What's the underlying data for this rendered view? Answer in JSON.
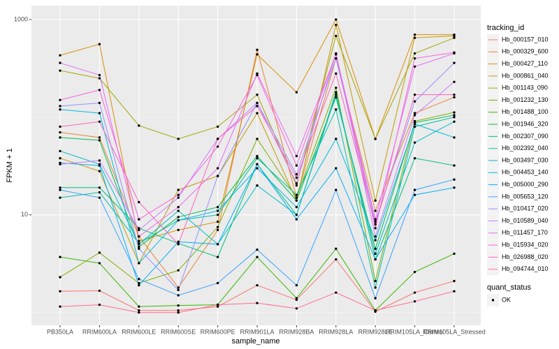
{
  "chart_data": {
    "type": "line",
    "x_label": "sample_name",
    "y_label": "FPKM + 1",
    "log_y": true,
    "grid": true,
    "legend_title": "tracking_id",
    "legend2_title": "quant_status",
    "legend2_entries": [
      "OK"
    ],
    "categories": [
      "PB350LA",
      "RRIM600LA",
      "RRIM600LE",
      "RRIM600SE",
      "RRIM600PE",
      "RRIM901LA",
      "RRIM928BA",
      "RRIM928LA",
      "RRIM928LE",
      "RRIM105LA_Control",
      "RRIM105LA_Stressed"
    ],
    "ylim": [
      0.74,
      1390
    ],
    "yticks": [
      10,
      1000
    ],
    "yminor": [
      1,
      100
    ],
    "series": [
      {
        "name": "Hb_000157_010",
        "color": "#F8766D",
        "values": [
          1.65,
          1.67,
          1.05,
          1.05,
          1.15,
          1.9,
          1.35,
          3.5,
          1.02,
          1.6,
          2.1
        ]
      },
      {
        "name": "Hb_000329_600",
        "color": "#EA8331",
        "values": [
          70,
          62,
          6,
          1.8,
          7,
          490,
          15,
          400,
          11,
          110,
          160
        ]
      },
      {
        "name": "Hb_000427_110",
        "color": "#D89000",
        "values": [
          430,
          560,
          5.4,
          7,
          8.5,
          440,
          180,
          1000,
          60,
          700,
          700
        ]
      },
      {
        "name": "Hb_000861_040",
        "color": "#C09B00",
        "values": [
          38,
          28,
          3.2,
          18,
          25,
          110,
          14,
          880,
          14,
          650,
          680
        ]
      },
      {
        "name": "Hb_001143_090",
        "color": "#A3A500",
        "values": [
          300,
          250,
          82,
          60,
          80,
          170,
          20,
          680,
          60,
          450,
          650
        ]
      },
      {
        "name": "Hb_001232_130",
        "color": "#7CAE00",
        "values": [
          2.3,
          4.1,
          2,
          2.7,
          7.5,
          60,
          15,
          200,
          2.1,
          91,
          112
        ]
      },
      {
        "name": "Hb_001488_100",
        "color": "#39B600",
        "values": [
          3.7,
          3.2,
          1.15,
          1.18,
          1.2,
          3.7,
          1.4,
          4.5,
          1.05,
          2.6,
          4.0
        ]
      },
      {
        "name": "Hb_001946_320",
        "color": "#00BB4E",
        "values": [
          62,
          58,
          4.7,
          9.5,
          12,
          40,
          14,
          160,
          4.5,
          88,
          105
        ]
      },
      {
        "name": "Hb_002307_090",
        "color": "#00BF7D",
        "values": [
          19,
          19,
          7.3,
          5.1,
          3.7,
          33,
          10,
          180,
          3.5,
          38,
          32
        ]
      },
      {
        "name": "Hb_002392_040",
        "color": "#00C1A3",
        "values": [
          15,
          17,
          5.1,
          8.8,
          10,
          38,
          16,
          120,
          1.8,
          80,
          100
        ]
      },
      {
        "name": "Hb_003497_030",
        "color": "#00BFC4",
        "values": [
          45,
          33,
          5,
          11,
          5,
          20,
          10,
          170,
          4,
          55,
          90
        ]
      },
      {
        "name": "Hb_004453_140",
        "color": "#00BAE0",
        "values": [
          120,
          110,
          3.2,
          8.8,
          11,
          30,
          12,
          60,
          5.5,
          85,
          62
        ]
      },
      {
        "name": "Hb_005000_290",
        "color": "#00B0F6",
        "values": [
          34,
          32,
          1.9,
          5.3,
          5.0,
          33,
          9,
          30,
          3.5,
          16,
          19
        ]
      },
      {
        "name": "Hb_005653_120",
        "color": "#35A2FF",
        "values": [
          18,
          15,
          2.2,
          1.5,
          2.0,
          4.4,
          1.9,
          18,
          1.4,
          18,
          23
        ]
      },
      {
        "name": "Hb_010417_020",
        "color": "#9590FF",
        "values": [
          130,
          140,
          4.5,
          1.7,
          25,
          140,
          26,
          400,
          8.5,
          145,
          360
        ]
      },
      {
        "name": "Hb_010589_040",
        "color": "#C77CFF",
        "values": [
          33,
          36,
          7,
          15,
          60,
          140,
          21,
          450,
          6,
          105,
          230
        ]
      },
      {
        "name": "Hb_011457_170",
        "color": "#E76BF3",
        "values": [
          360,
          270,
          6,
          12,
          30,
          280,
          40,
          440,
          9,
          330,
          450
        ]
      },
      {
        "name": "Hb_015934_020",
        "color": "#FA62DB",
        "values": [
          150,
          190,
          9,
          16,
          50,
          270,
          32,
          450,
          7.3,
          400,
          460
        ]
      },
      {
        "name": "Hb_026988_020",
        "color": "#FF62BC",
        "values": [
          80,
          90,
          13.5,
          5,
          60,
          130,
          24,
          280,
          8,
          170,
          170
        ]
      },
      {
        "name": "Hb_094744_010",
        "color": "#FF6C91",
        "values": [
          1.15,
          1.2,
          1.0,
          1.0,
          1.2,
          1.25,
          1.1,
          1.6,
          1.05,
          1.3,
          1.65
        ]
      }
    ]
  }
}
